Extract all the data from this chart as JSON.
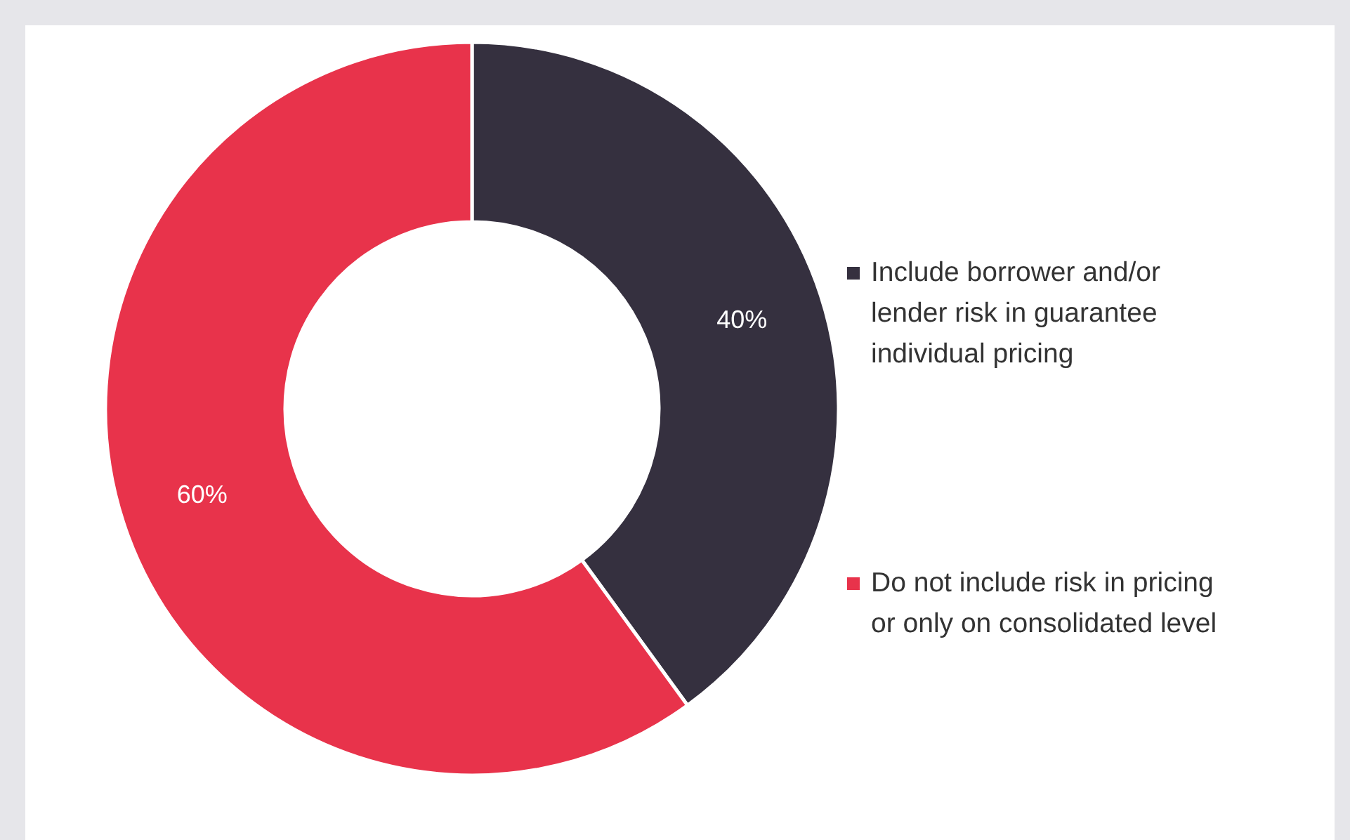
{
  "chart_data": {
    "type": "donut",
    "categories": [
      "Include borrower and/or lender risk in guarantee individual pricing",
      "Do not include risk in pricing or only on consolidated level"
    ],
    "values": [
      40,
      60
    ],
    "colors": [
      "#35303f",
      "#e8334b"
    ],
    "value_labels": [
      "40%",
      "60%"
    ],
    "legend": "right"
  }
}
